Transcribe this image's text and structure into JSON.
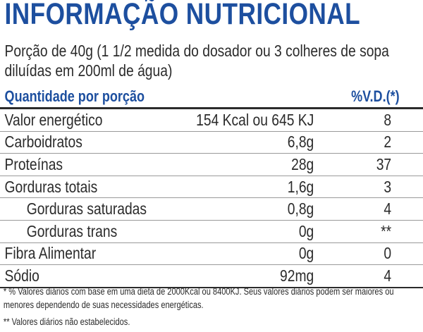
{
  "header": {
    "title": "INFORMAÇÃO NUTRICIONAL",
    "serving": "Porção de 40g (1 1/2 medida do dosador ou 3 colheres de sopa diluídas em 200ml de água)"
  },
  "table": {
    "columns": [
      "Quantidade por porção",
      "%V.D.(*)"
    ],
    "rows": [
      [
        "Valor energético",
        "154 Kcal ou 645 KJ",
        "8"
      ],
      [
        "Carboidratos",
        "6,8g",
        "2"
      ],
      [
        "Proteínas",
        "28g",
        "37"
      ],
      [
        "Gorduras totais",
        "1,6g",
        "3"
      ],
      [
        "Gorduras saturadas",
        "0,8g",
        "4"
      ],
      [
        "Gorduras trans",
        "0g",
        "**"
      ],
      [
        "Fibra Alimentar",
        "0g",
        "0"
      ],
      [
        "Sódio",
        "92mg",
        "4"
      ]
    ]
  },
  "footnotes": [
    "* % Valores diários com base em uma dieta de 2000Kcal ou 8400KJ. Seus valores diários podem ser maiores ou menores dependendo de suas necessidades energéticas.",
    "** Valores diários não estabelecidos."
  ]
}
